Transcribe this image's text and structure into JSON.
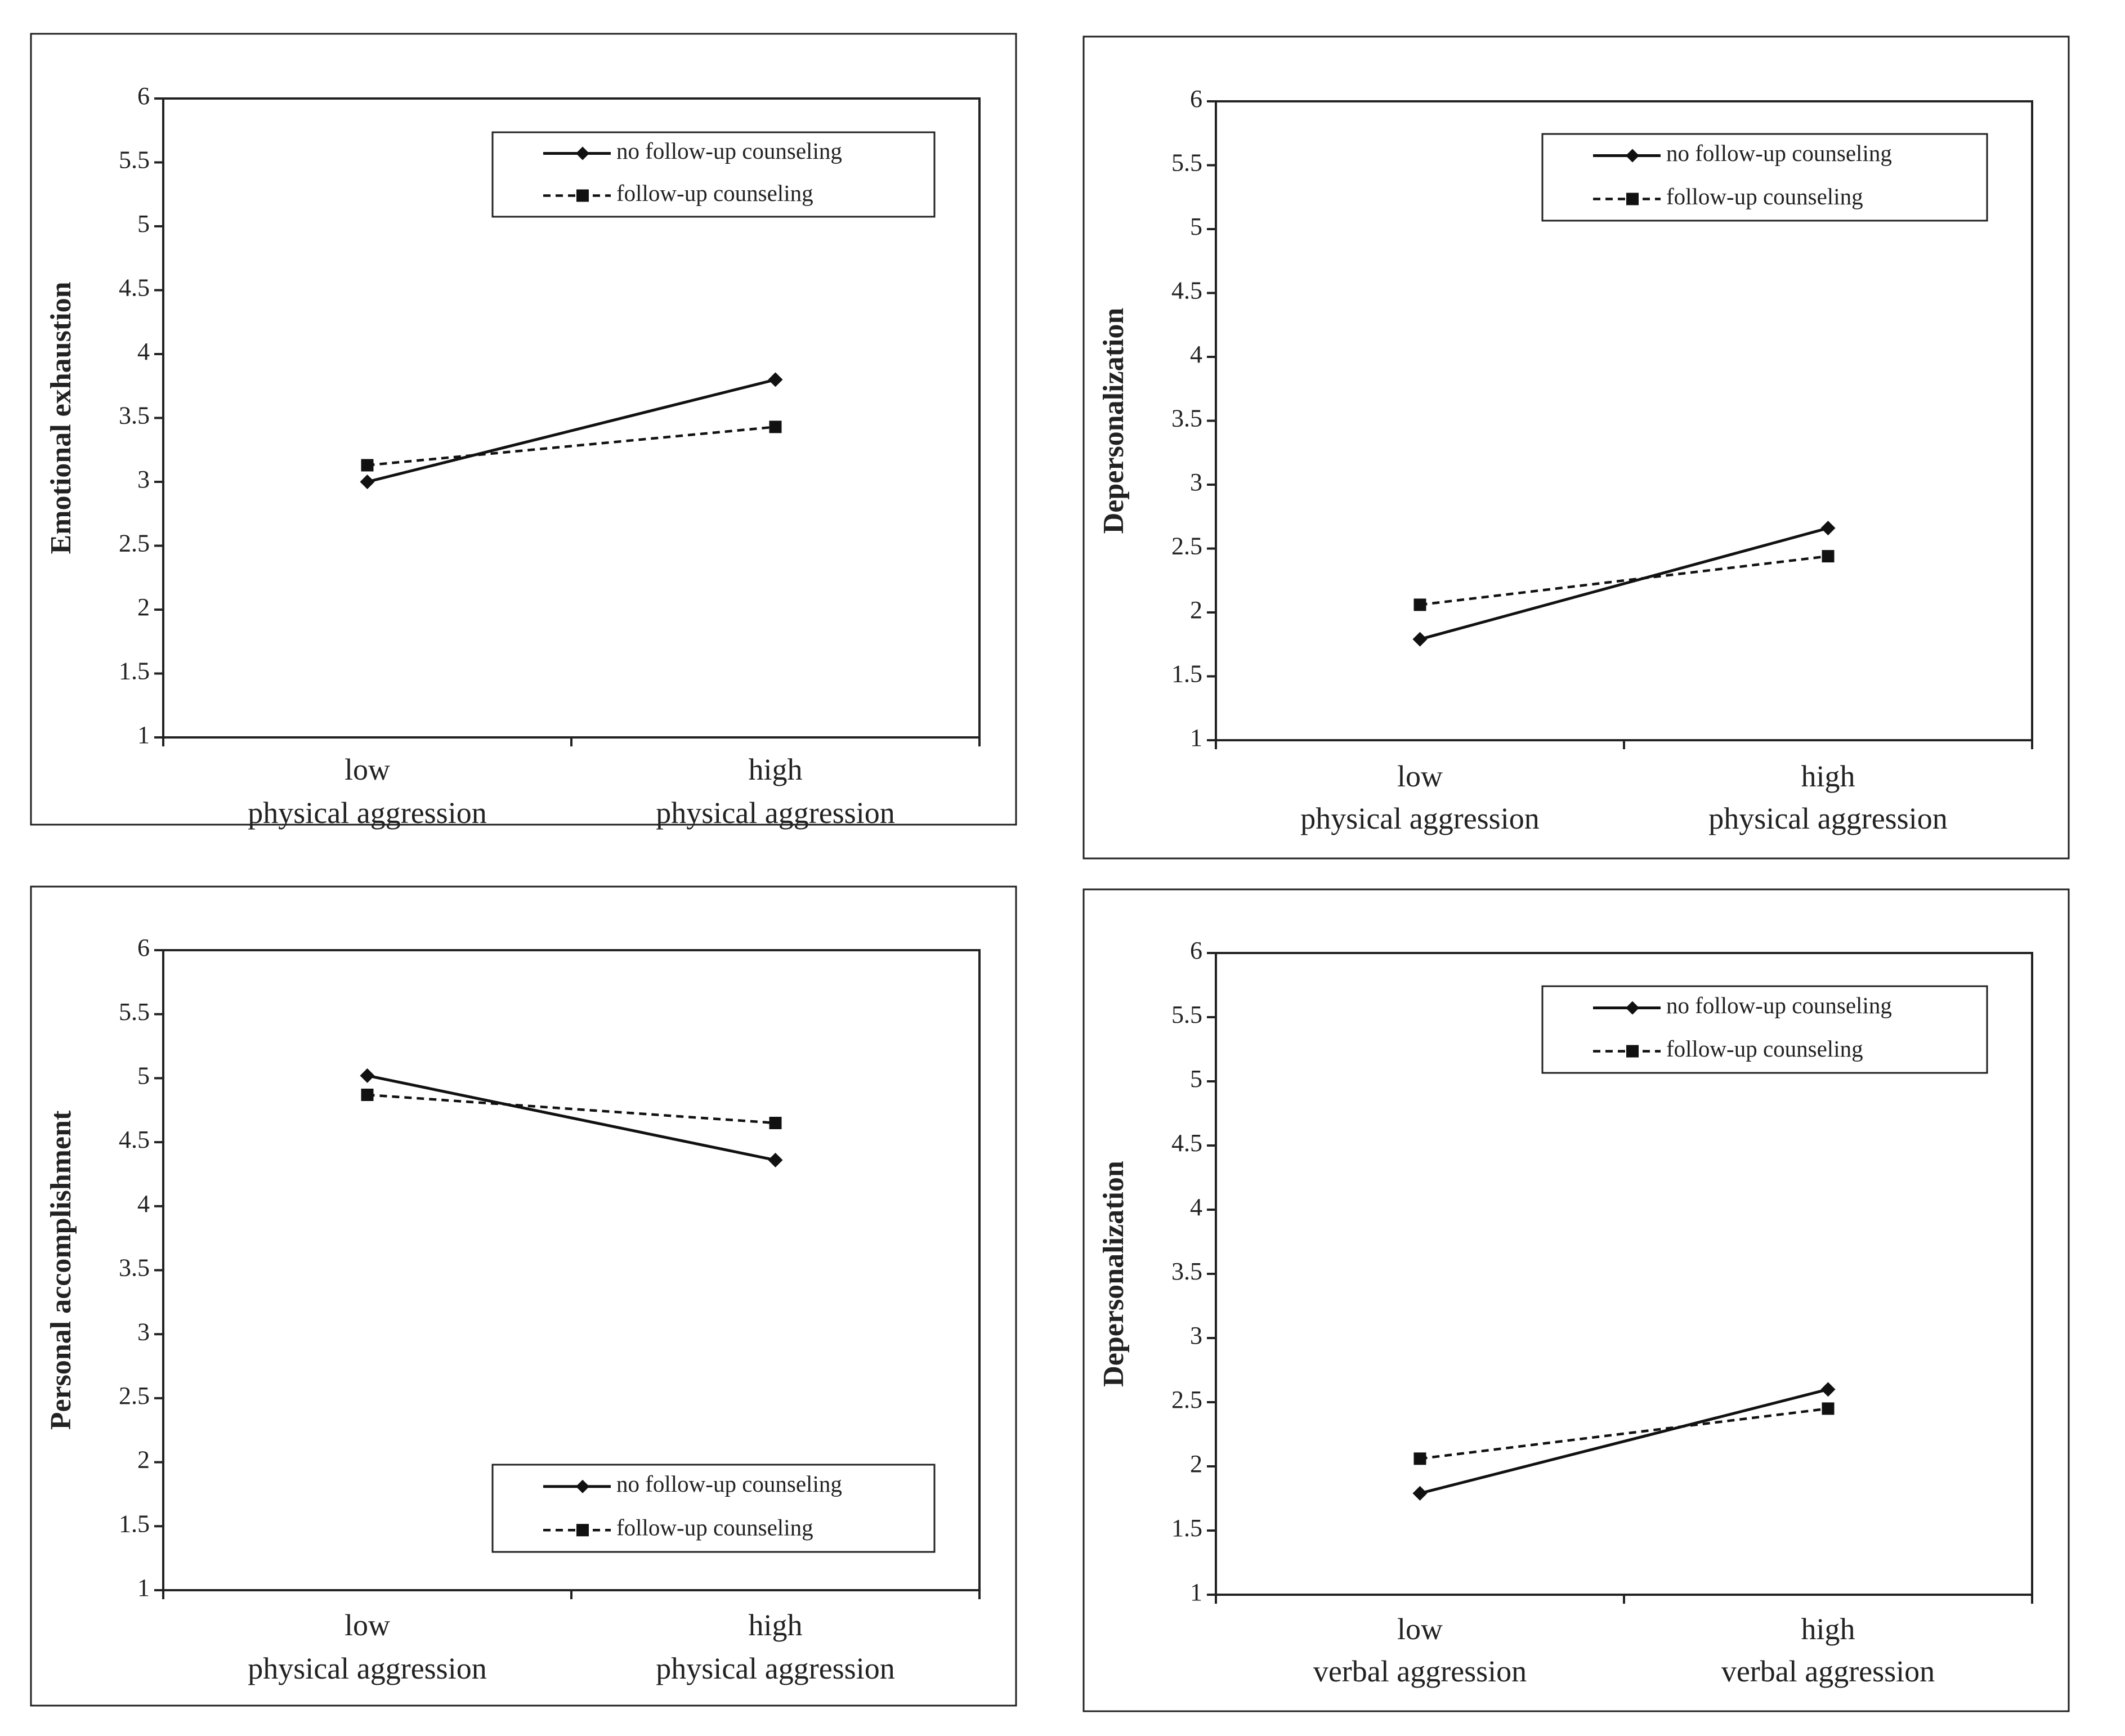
{
  "chart_data": [
    {
      "type": "line",
      "ylabel": "Emotional exhaustion",
      "categories": [
        "low\nphysical aggression",
        "high\nphysical aggression"
      ],
      "ylim": [
        1,
        6
      ],
      "yticks": [
        "1",
        "1.5",
        "2",
        "2.5",
        "3",
        "3.5",
        "4",
        "4.5",
        "5",
        "5.5",
        "6"
      ],
      "legend_position": "top-right",
      "series": [
        {
          "name": "no follow-up counseling",
          "style": "solid",
          "marker": "diamond",
          "values": [
            3.0,
            3.8
          ]
        },
        {
          "name": "follow-up counseling",
          "style": "dashed",
          "marker": "square",
          "values": [
            3.13,
            3.43
          ]
        }
      ]
    },
    {
      "type": "line",
      "ylabel": "Depersonalization",
      "categories": [
        "low\nphysical aggression",
        "high\nphysical aggression"
      ],
      "ylim": [
        1,
        6
      ],
      "yticks": [
        "1",
        "1.5",
        "2",
        "2.5",
        "3",
        "3.5",
        "4",
        "4.5",
        "5",
        "5.5",
        "6"
      ],
      "legend_position": "top-right",
      "series": [
        {
          "name": "no follow-up counseling",
          "style": "solid",
          "marker": "diamond",
          "values": [
            1.79,
            2.66
          ]
        },
        {
          "name": "follow-up counseling",
          "style": "dashed",
          "marker": "square",
          "values": [
            2.06,
            2.44
          ]
        }
      ]
    },
    {
      "type": "line",
      "ylabel": "Personal accomplishment",
      "categories": [
        "low\nphysical aggression",
        "high\nphysical aggression"
      ],
      "ylim": [
        1,
        6
      ],
      "yticks": [
        "1",
        "1.5",
        "2",
        "2.5",
        "3",
        "3.5",
        "4",
        "4.5",
        "5",
        "5.5",
        "6"
      ],
      "legend_position": "bottom-right",
      "series": [
        {
          "name": "no follow-up counseling",
          "style": "solid",
          "marker": "diamond",
          "values": [
            5.02,
            4.36
          ]
        },
        {
          "name": "follow-up counseling",
          "style": "dashed",
          "marker": "square",
          "values": [
            4.87,
            4.65
          ]
        }
      ]
    },
    {
      "type": "line",
      "ylabel": "Depersonalization",
      "categories": [
        "low\nverbal aggression",
        "high\nverbal aggression"
      ],
      "ylim": [
        1,
        6
      ],
      "yticks": [
        "1",
        "1.5",
        "2",
        "2.5",
        "3",
        "3.5",
        "4",
        "4.5",
        "5",
        "5.5",
        "6"
      ],
      "legend_position": "top-right",
      "series": [
        {
          "name": "no follow-up counseling",
          "style": "solid",
          "marker": "diamond",
          "values": [
            1.79,
            2.6
          ]
        },
        {
          "name": "follow-up counseling",
          "style": "dashed",
          "marker": "square",
          "values": [
            2.06,
            2.45
          ]
        }
      ]
    }
  ]
}
